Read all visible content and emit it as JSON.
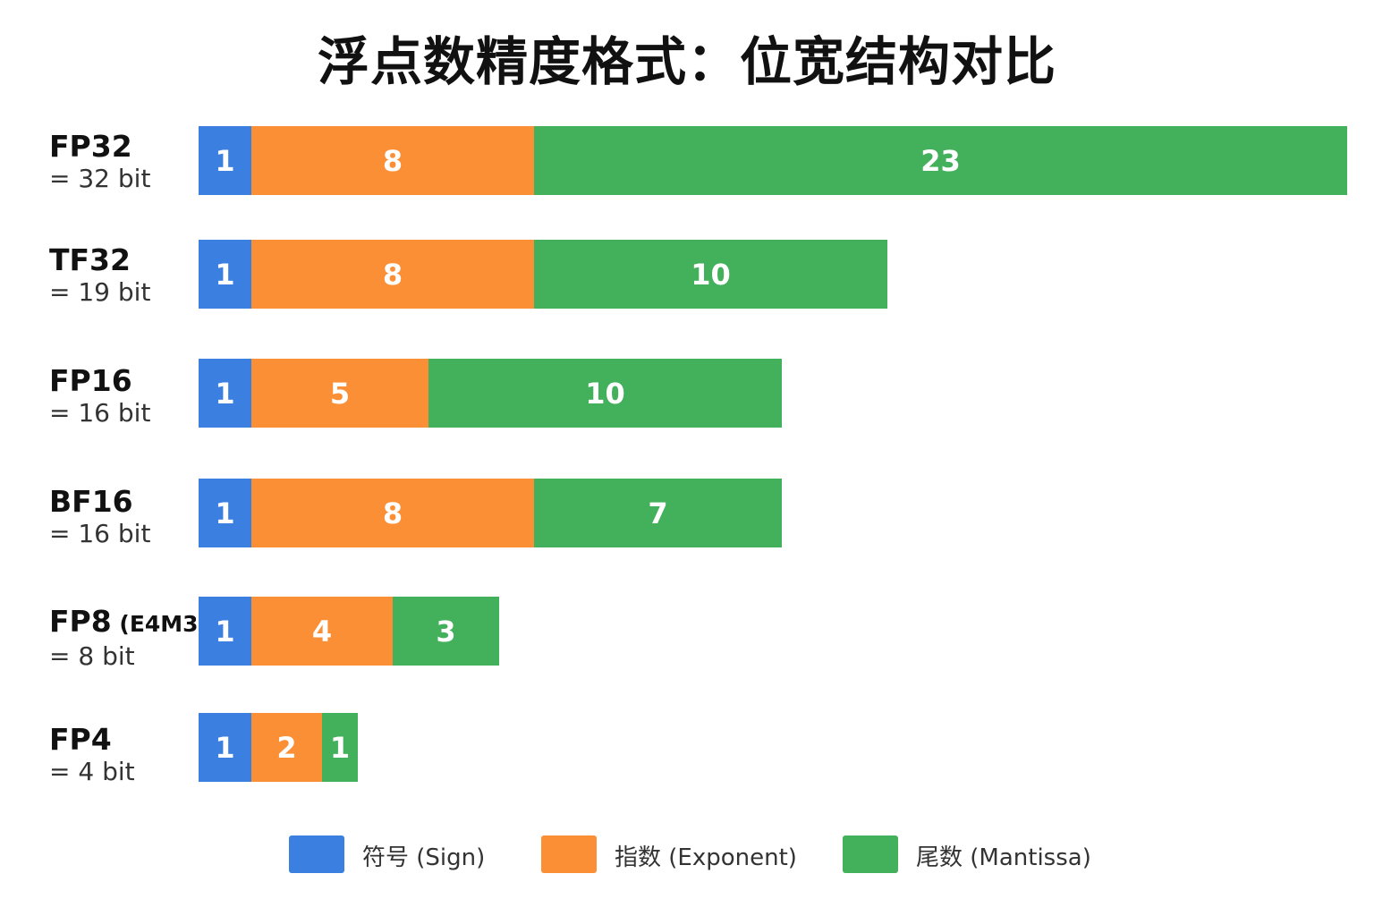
{
  "chart_data": {
    "type": "bar",
    "orientation": "horizontal",
    "stacked": true,
    "title": "浮点数精度格式：位宽结构对比",
    "categories": [
      "FP32",
      "TF32",
      "FP16",
      "BF16",
      "FP8",
      "FP4"
    ],
    "category_variants": [
      "",
      "",
      "",
      "",
      "(E4M3)",
      ""
    ],
    "totals": [
      "= 32 bit",
      "= 19 bit",
      "= 16 bit",
      "= 16 bit",
      "= 8 bit",
      "= 4 bit"
    ],
    "series": [
      {
        "name": "符号 (Sign)",
        "color": "#3b80e0",
        "values": [
          1,
          1,
          1,
          1,
          1,
          1
        ]
      },
      {
        "name": "指数 (Exponent)",
        "color": "#fb8f35",
        "values": [
          8,
          8,
          5,
          8,
          4,
          2
        ]
      },
      {
        "name": "尾数 (Mantissa)",
        "color": "#43b05c",
        "values": [
          23,
          10,
          10,
          7,
          3,
          1
        ]
      }
    ],
    "grid": false,
    "legend_position": "bottom"
  }
}
